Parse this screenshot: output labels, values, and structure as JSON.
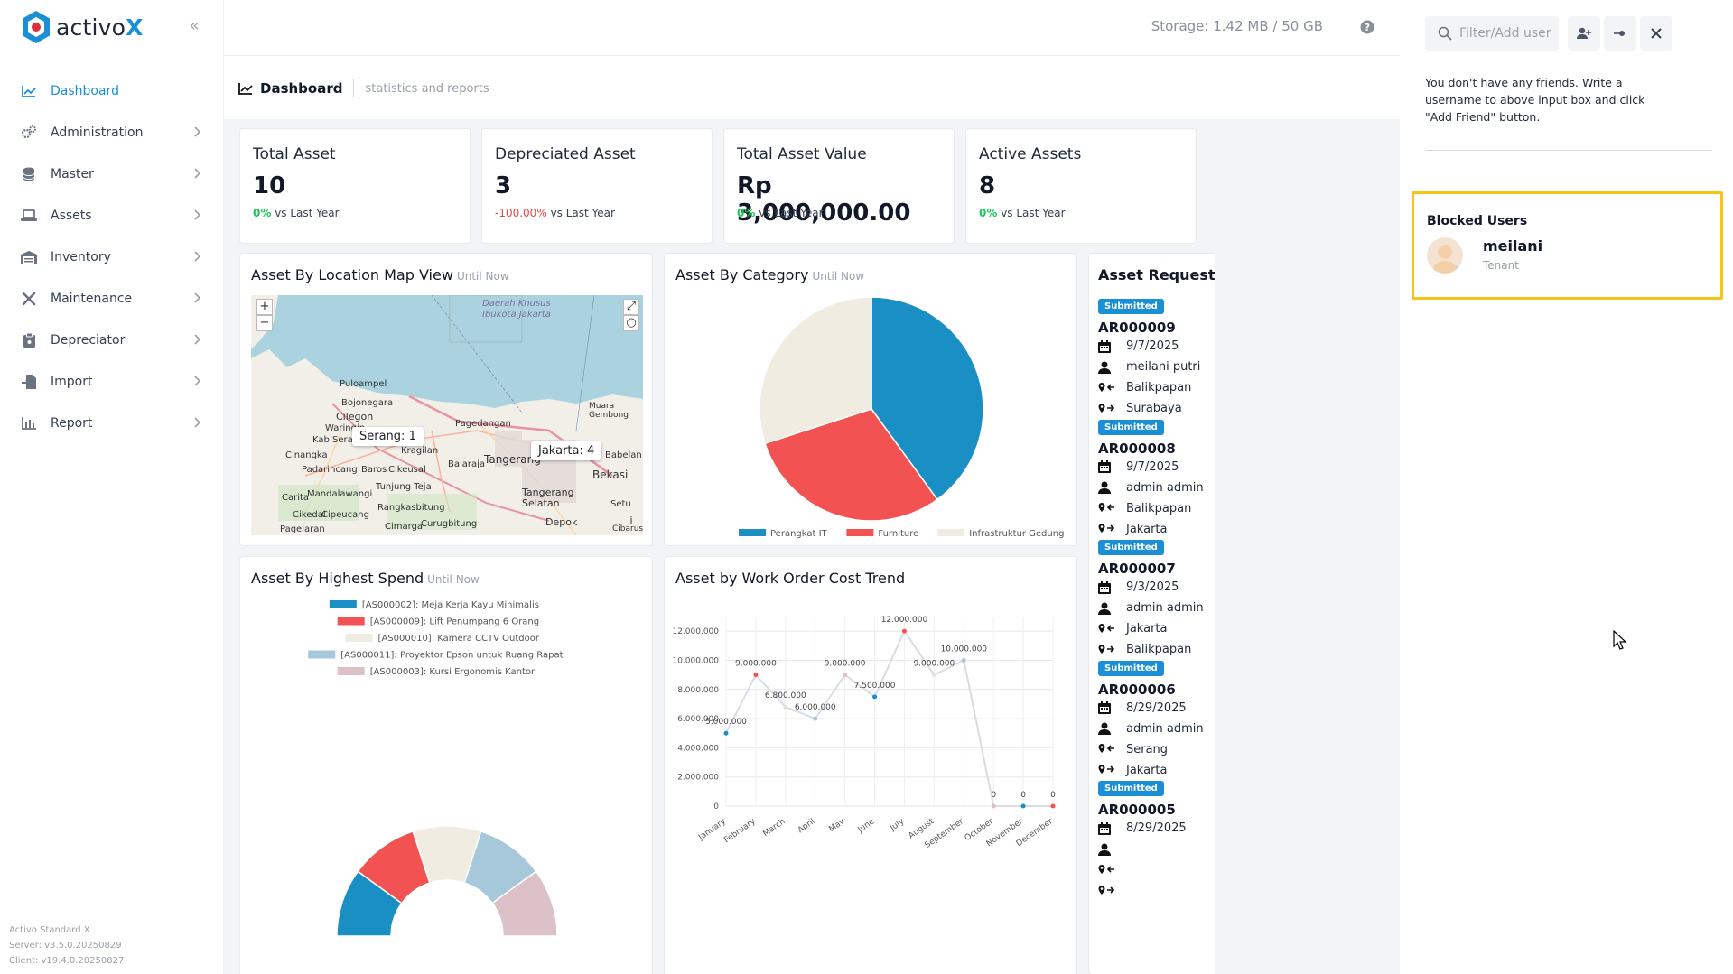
{
  "brand": {
    "name": "activo",
    "suffix": "X"
  },
  "sidebar": {
    "items": [
      {
        "label": "Dashboard",
        "icon": "chart-line-icon",
        "active": true
      },
      {
        "label": "Administration",
        "icon": "cogs-icon"
      },
      {
        "label": "Master",
        "icon": "database-icon"
      },
      {
        "label": "Assets",
        "icon": "laptop-icon"
      },
      {
        "label": "Inventory",
        "icon": "warehouse-icon"
      },
      {
        "label": "Maintenance",
        "icon": "tools-icon"
      },
      {
        "label": "Depreciator",
        "icon": "clipboard-icon"
      },
      {
        "label": "Import",
        "icon": "file-import-icon"
      },
      {
        "label": "Report",
        "icon": "chart-bar-icon"
      }
    ],
    "footer": {
      "product": "Activo Standard X",
      "server": "Server: v3.5.0.20250829",
      "client": "Client: v19.4.0.20250827"
    }
  },
  "topbar": {
    "storage": "Storage: 1.42 MB / 50 GB"
  },
  "page": {
    "title": "Dashboard",
    "subtitle": "statistics and reports"
  },
  "stats": [
    {
      "title": "Total Asset",
      "value": "10",
      "delta": "0%",
      "delta_text": "vs Last Year",
      "negative": false
    },
    {
      "title": "Depreciated Asset",
      "value": "3",
      "delta": "-100.00%",
      "delta_text": "vs Last Year",
      "negative": true
    },
    {
      "title": "Total Asset Value",
      "value": "Rp 3,000,000.00",
      "delta": "0%",
      "delta_text": "vs Last Year",
      "negative": false
    },
    {
      "title": "Active Assets",
      "value": "8",
      "delta": "0%",
      "delta_text": "vs Last Year",
      "negative": false
    }
  ],
  "panels": {
    "map": {
      "title": "Asset By Location Map View",
      "until": "Until Now",
      "tooltips": [
        "Serang: 1",
        "Jakarta: 4"
      ],
      "labels": [
        "Daerah Khusus Ibukota Jakarta",
        "Puloampel",
        "Bojonegara",
        "Cilegon",
        "Waringin",
        "Kab Serang",
        "Pagedangan",
        "Kragilan",
        "Cinangka",
        "Padarincang",
        "Baros",
        "Cikeusal",
        "Balaraja",
        "Tangerang",
        "Babelan",
        "Bekasi",
        "Muara Gembong",
        "Mandalawangi",
        "Carita",
        "Tunjung Teja",
        "Tangerang Selatan",
        "Setu",
        "Rangkasbitung",
        "Cikedal",
        "Cipeucang",
        "Pagelaran",
        "Cimarga",
        "Curugbitung",
        "Depok",
        "Cibarusa"
      ]
    },
    "category": {
      "title": "Asset By Category",
      "until": "Until Now"
    },
    "spend": {
      "title": "Asset By Highest Spend",
      "until": "Until Now"
    },
    "workorder": {
      "title": "Asset by Work Order Cost Trend"
    },
    "requests": {
      "title": "Asset Requests"
    }
  },
  "chart_data": [
    {
      "type": "pie",
      "categories": [
        "Perangkat IT",
        "Furniture",
        "Infrastruktur Gedung"
      ],
      "values": [
        4,
        3,
        3
      ],
      "colors": [
        "#1a8fc4",
        "#f25252",
        "#f0ece1"
      ],
      "legend": "bottom"
    },
    {
      "type": "pie",
      "subtype": "half-donut",
      "categories": [
        "[AS000002]: Meja Kerja Kayu Minimalis",
        "[AS000009]: Lift Penumpang 6 Orang",
        "[AS000010]: Kamera CCTV Outdoor",
        "[AS000011]: Proyektor Epson untuk Ruang Rapat",
        "[AS000003]: Kursi Ergonomis Kantor"
      ],
      "values": [
        1,
        1,
        1,
        1,
        1
      ],
      "colors": [
        "#1a8fc4",
        "#f25252",
        "#f0ece1",
        "#a7c8db",
        "#dcc2c7"
      ],
      "legend": "top"
    },
    {
      "type": "line",
      "x": [
        "January",
        "February",
        "March",
        "April",
        "May",
        "June",
        "July",
        "August",
        "September",
        "October",
        "November",
        "December"
      ],
      "y_ticks": [
        "0",
        "2.000.000",
        "4.000.000",
        "6.000.000",
        "8.000.000",
        "10.000.000",
        "12.000.000"
      ],
      "ylim": [
        0,
        13000000
      ],
      "data_labels": [
        "5.000.000",
        "9.000.000",
        "6.800.000",
        "6.000.000",
        "9.000.000",
        "7.500.000",
        "12.000.000",
        "9.000.000",
        "10.000.000",
        "0",
        "0",
        "0"
      ],
      "series": [
        {
          "values": [
            5000000,
            9000000,
            6800000,
            6000000,
            9000000,
            7500000,
            12000000,
            9000000,
            10000000,
            0,
            0,
            0
          ]
        }
      ],
      "grid": true
    }
  ],
  "requests": [
    {
      "status": "Submitted",
      "code": "AR000009",
      "date": "9/7/2025",
      "user": "meilani putri",
      "from": "Balikpapan",
      "to": "Surabaya"
    },
    {
      "status": "Submitted",
      "code": "AR000008",
      "date": "9/7/2025",
      "user": "admin admin",
      "from": "Balikpapan",
      "to": "Jakarta"
    },
    {
      "status": "Submitted",
      "code": "AR000007",
      "date": "9/3/2025",
      "user": "admin admin",
      "from": "Jakarta",
      "to": "Balikpapan"
    },
    {
      "status": "Submitted",
      "code": "AR000006",
      "date": "8/29/2025",
      "user": "admin admin",
      "from": "Serang",
      "to": "Jakarta"
    },
    {
      "status": "Submitted",
      "code": "AR000005",
      "date": "8/29/2025",
      "user": "",
      "from": "",
      "to": ""
    }
  ],
  "right_panel": {
    "search_placeholder": "Filter/Add user",
    "friends_message": "You don't have any friends. Write a username to above input box and click \"Add Friend\" button.",
    "blocked": {
      "title": "Blocked Users",
      "name": "meilani",
      "role": "Tenant"
    }
  }
}
